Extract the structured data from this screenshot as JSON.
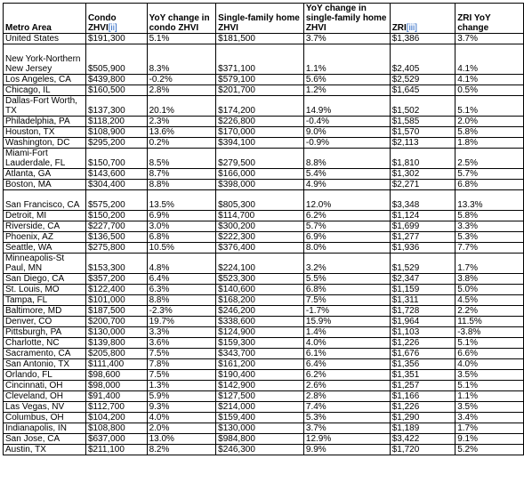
{
  "table": {
    "headers": [
      {
        "text": "Metro Area"
      },
      {
        "text": "Condo ZHVI",
        "ref": "[ii]"
      },
      {
        "text": "YoY change in condo ZHVI"
      },
      {
        "text": "Single-family home ZHVI"
      },
      {
        "text": "YoY change in single-family home ZHVI"
      },
      {
        "text": "ZRI",
        "ref": "[iii]"
      },
      {
        "text": "ZRI YoY change"
      }
    ],
    "rows": [
      [
        "United States",
        "$191,300",
        "5.1%",
        "$181,500",
        "3.7%",
        "$1,386",
        "3.7%"
      ],
      [
        "New York-Northern New Jersey",
        "$505,900",
        "8.3%",
        "$371,100",
        "1.1%",
        "$2,405",
        "4.1%"
      ],
      [
        "Los Angeles, CA",
        "$439,800",
        "-0.2%",
        "$579,100",
        "5.6%",
        "$2,529",
        "4.1%"
      ],
      [
        "Chicago, IL",
        "$160,500",
        "2.8%",
        "$201,700",
        "1.2%",
        "$1,645",
        "0.5%"
      ],
      [
        "Dallas-Fort Worth, TX",
        "$137,300",
        "20.1%",
        "$174,200",
        "14.9%",
        "$1,502",
        "5.1%"
      ],
      [
        "Philadelphia, PA",
        "$118,200",
        "2.3%",
        "$226,800",
        "-0.4%",
        "$1,585",
        "2.0%"
      ],
      [
        "Houston, TX",
        "$108,900",
        "13.6%",
        "$170,000",
        "9.0%",
        "$1,570",
        "5.8%"
      ],
      [
        "Washington, DC",
        "$295,200",
        "0.2%",
        "$394,100",
        "-0.9%",
        "$2,113",
        "1.8%"
      ],
      [
        "Miami-Fort Lauderdale, FL",
        "$150,700",
        "8.5%",
        "$279,500",
        "8.8%",
        "$1,810",
        "2.5%"
      ],
      [
        "Atlanta, GA",
        "$143,600",
        "8.7%",
        "$166,000",
        "5.4%",
        "$1,302",
        "5.7%"
      ],
      [
        "Boston, MA",
        "$304,400",
        "8.8%",
        "$398,000",
        "4.9%",
        "$2,271",
        "6.8%"
      ],
      [
        "San Francisco, CA",
        "$575,200",
        "13.5%",
        "$805,300",
        "12.0%",
        "$3,348",
        "13.3%"
      ],
      [
        "Detroit, MI",
        "$150,200",
        "6.9%",
        "$114,700",
        "6.2%",
        "$1,124",
        "5.8%"
      ],
      [
        "Riverside, CA",
        "$227,700",
        "3.0%",
        "$300,200",
        "5.7%",
        "$1,699",
        "3.3%"
      ],
      [
        "Phoenix, AZ",
        "$136,500",
        "6.8%",
        "$222,300",
        "6.9%",
        "$1,277",
        "5.3%"
      ],
      [
        "Seattle, WA",
        "$275,800",
        "10.5%",
        "$376,400",
        "8.0%",
        "$1,936",
        "7.7%"
      ],
      [
        "Minneapolis-St Paul, MN",
        "$153,300",
        "4.8%",
        "$224,100",
        "3.2%",
        "$1,529",
        "1.7%"
      ],
      [
        "San Diego, CA",
        "$357,200",
        "6.4%",
        "$523,300",
        "5.5%",
        "$2,347",
        "3.8%"
      ],
      [
        "St. Louis, MO",
        "$122,400",
        "6.3%",
        "$140,600",
        "6.8%",
        "$1,159",
        "5.0%"
      ],
      [
        "Tampa, FL",
        "$101,000",
        "8.8%",
        "$168,200",
        "7.5%",
        "$1,311",
        "4.5%"
      ],
      [
        "Baltimore, MD",
        "$187,500",
        "-2.3%",
        "$246,200",
        "-1.7%",
        "$1,728",
        "2.2%"
      ],
      [
        "Denver, CO",
        "$200,700",
        "19.7%",
        "$338,600",
        "15.9%",
        "$1,964",
        "11.5%"
      ],
      [
        "Pittsburgh, PA",
        "$130,000",
        "3.3%",
        "$124,900",
        "1.4%",
        "$1,103",
        "-3.8%"
      ],
      [
        "Charlotte, NC",
        "$139,800",
        "3.6%",
        "$159,300",
        "4.0%",
        "$1,226",
        "5.1%"
      ],
      [
        "Sacramento, CA",
        "$205,800",
        "7.5%",
        "$343,700",
        "6.1%",
        "$1,676",
        "6.6%"
      ],
      [
        "San Antonio, TX",
        "$111,400",
        "7.8%",
        "$161,200",
        "6.4%",
        "$1,356",
        "4.0%"
      ],
      [
        "Orlando, FL",
        "$98,600",
        "7.5%",
        "$190,400",
        "6.2%",
        "$1,351",
        "3.5%"
      ],
      [
        "Cincinnati, OH",
        "$98,000",
        "1.3%",
        "$142,900",
        "2.6%",
        "$1,257",
        "5.1%"
      ],
      [
        "Cleveland, OH",
        "$91,400",
        "5.9%",
        "$127,500",
        "2.8%",
        "$1,166",
        "1.1%"
      ],
      [
        "Las Vegas, NV",
        "$112,700",
        "9.3%",
        "$214,000",
        "7.4%",
        "$1,226",
        "3.5%"
      ],
      [
        "Columbus, OH",
        "$104,200",
        "4.0%",
        "$159,400",
        "5.3%",
        "$1,290",
        "3.4%"
      ],
      [
        "Indianapolis, IN",
        "$108,800",
        "2.0%",
        "$130,000",
        "3.7%",
        "$1,189",
        "1.7%"
      ],
      [
        "San Jose, CA",
        "$637,000",
        "13.0%",
        "$984,800",
        "12.9%",
        "$3,422",
        "9.1%"
      ],
      [
        "Austin, TX",
        "$211,100",
        "8.2%",
        "$246,300",
        "9.9%",
        "$1,720",
        "5.2%"
      ]
    ]
  },
  "colors": {
    "text": "#000000",
    "border": "#000000",
    "link": "#1f5fbf",
    "background": "#ffffff"
  }
}
